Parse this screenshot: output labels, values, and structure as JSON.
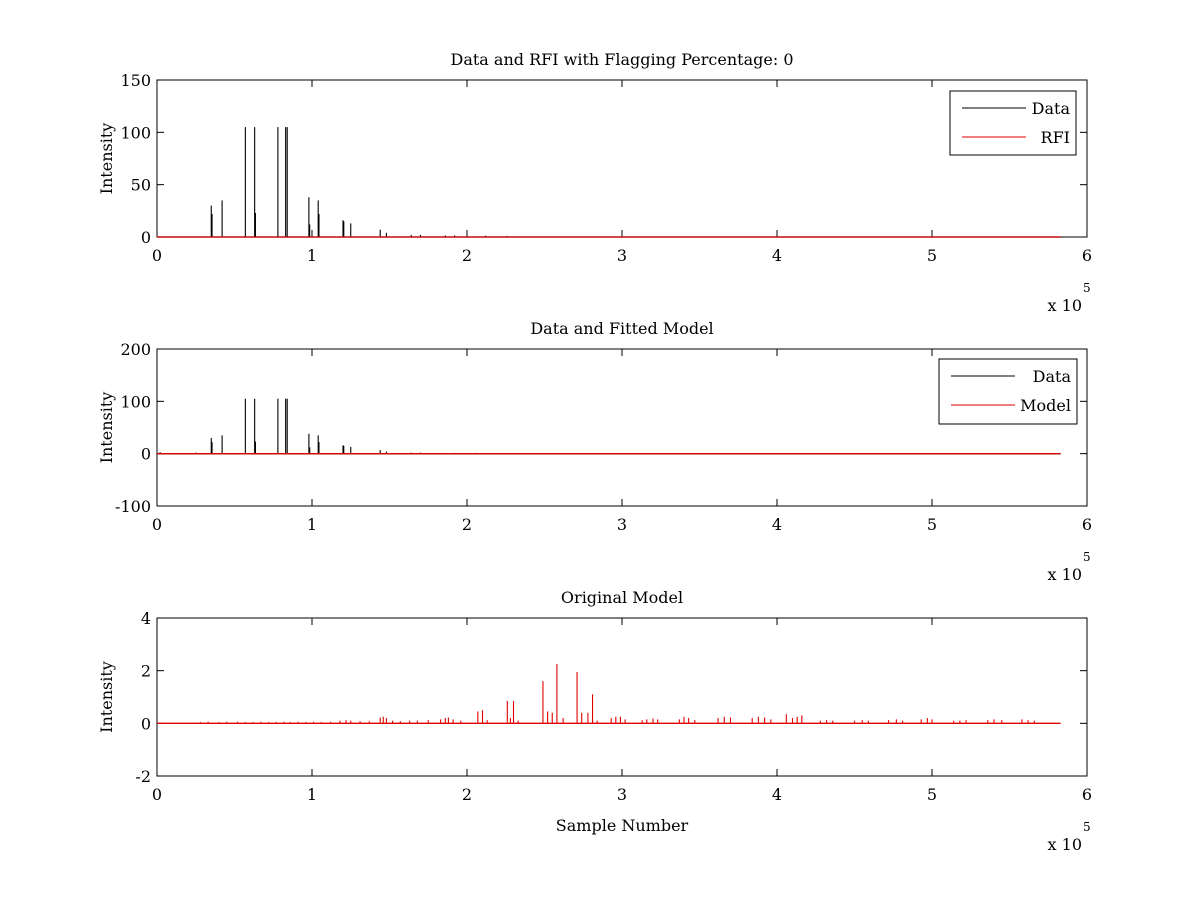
{
  "colors": {
    "data": "#000000",
    "red": "#e00000",
    "axes": "#000000",
    "background": "#ffffff"
  },
  "chart_data": [
    {
      "type": "line",
      "title": "Data and RFI with Flagging Percentage: 0",
      "xlabel": "",
      "ylabel": "Intensity",
      "xlim": [
        0,
        600000
      ],
      "ylim": [
        0,
        150
      ],
      "x_ticks": [
        0,
        1,
        2,
        3,
        4,
        5,
        6
      ],
      "y_ticks": [
        0,
        50,
        100,
        150
      ],
      "x_multiplier_label": "x 10",
      "x_multiplier_exponent": "5",
      "legend": {
        "placement": "top-right",
        "entries": [
          "Data",
          "RFI"
        ]
      },
      "baseline": 0,
      "x_end": 583000,
      "series": [
        {
          "name": "Data",
          "color": "#000000",
          "spikes": [
            [
              35000,
              30
            ],
            [
              35500,
              22
            ],
            [
              42000,
              35
            ],
            [
              57000,
              105
            ],
            [
              63000,
              105
            ],
            [
              63500,
              23
            ],
            [
              78000,
              105
            ],
            [
              83000,
              105
            ],
            [
              84000,
              105
            ],
            [
              98000,
              38
            ],
            [
              98500,
              12
            ],
            [
              104000,
              35
            ],
            [
              104500,
              22
            ],
            [
              120000,
              16
            ],
            [
              120500,
              15
            ],
            [
              125000,
              13
            ],
            [
              144000,
              7
            ],
            [
              148000,
              4
            ],
            [
              164000,
              2
            ],
            [
              170000,
              2
            ],
            [
              186000,
              1.5
            ],
            [
              192000,
              1.5
            ],
            [
              212000,
              1.2
            ],
            [
              226000,
              1
            ]
          ]
        },
        {
          "name": "RFI",
          "color": "#e00000",
          "spikes": []
        }
      ]
    },
    {
      "type": "line",
      "title": "Data and Fitted Model",
      "xlabel": "",
      "ylabel": "Intensity",
      "xlim": [
        0,
        600000
      ],
      "ylim": [
        -100,
        200
      ],
      "x_ticks": [
        0,
        1,
        2,
        3,
        4,
        5,
        6
      ],
      "y_ticks": [
        -100,
        0,
        100,
        200
      ],
      "x_multiplier_label": "x 10",
      "x_multiplier_exponent": "5",
      "legend": {
        "placement": "top-right",
        "entries": [
          "Data",
          "Model"
        ]
      },
      "baseline": 0,
      "x_end": 583000,
      "series": [
        {
          "name": "Data",
          "color": "#000000",
          "spikes": [
            [
              2000,
              3
            ],
            [
              25000,
              2
            ],
            [
              35000,
              30
            ],
            [
              35500,
              22
            ],
            [
              42000,
              35
            ],
            [
              57000,
              105
            ],
            [
              63000,
              105
            ],
            [
              63500,
              23
            ],
            [
              78000,
              105
            ],
            [
              83000,
              105
            ],
            [
              84000,
              105
            ],
            [
              98000,
              38
            ],
            [
              98500,
              12
            ],
            [
              104000,
              35
            ],
            [
              104500,
              22
            ],
            [
              120000,
              16
            ],
            [
              120500,
              15
            ],
            [
              125000,
              13
            ],
            [
              144000,
              7
            ],
            [
              148000,
              4
            ],
            [
              164000,
              2
            ],
            [
              170000,
              2
            ],
            [
              186000,
              1.5
            ],
            [
              192000,
              1.5
            ],
            [
              206000,
              1.5
            ],
            [
              212000,
              1.2
            ],
            [
              226000,
              1
            ],
            [
              248000,
              1
            ],
            [
              252000,
              1
            ],
            [
              275000,
              1
            ],
            [
              280000,
              1
            ],
            [
              295000,
              1
            ],
            [
              300000,
              1
            ],
            [
              318000,
              1
            ],
            [
              322000,
              1
            ],
            [
              362000,
              1
            ],
            [
              405000,
              1
            ],
            [
              582000,
              1
            ]
          ]
        },
        {
          "name": "Model",
          "color": "#e00000",
          "spikes": [
            [
              2000,
              1
            ],
            [
              25000,
              0.5
            ],
            [
              250000,
              0.5
            ],
            [
              280000,
              0.5
            ],
            [
              582000,
              0.5
            ]
          ]
        }
      ]
    },
    {
      "type": "line",
      "title": "Original Model",
      "xlabel": "Sample Number",
      "ylabel": "Intensity",
      "xlim": [
        0,
        600000
      ],
      "ylim": [
        -2,
        4
      ],
      "x_ticks": [
        0,
        1,
        2,
        3,
        4,
        5,
        6
      ],
      "y_ticks": [
        -2,
        0,
        2,
        4
      ],
      "x_multiplier_label": "x 10",
      "x_multiplier_exponent": "5",
      "legend": null,
      "baseline": 0,
      "x_end": 583000,
      "series": [
        {
          "name": "",
          "color": "#e00000",
          "spikes": [
            [
              28000,
              0.05
            ],
            [
              33000,
              0.06
            ],
            [
              40000,
              0.05
            ],
            [
              45000,
              0.06
            ],
            [
              52000,
              0.06
            ],
            [
              57000,
              0.05
            ],
            [
              62000,
              0.05
            ],
            [
              67000,
              0.06
            ],
            [
              72000,
              0.05
            ],
            [
              77000,
              0.05
            ],
            [
              82000,
              0.06
            ],
            [
              86000,
              0.05
            ],
            [
              91000,
              0.06
            ],
            [
              96000,
              0.05
            ],
            [
              101000,
              0.06
            ],
            [
              106000,
              0.05
            ],
            [
              112000,
              0.06
            ],
            [
              118000,
              0.1
            ],
            [
              122000,
              0.12
            ],
            [
              125000,
              0.1
            ],
            [
              131000,
              0.08
            ],
            [
              137000,
              0.08
            ],
            [
              144000,
              0.22
            ],
            [
              146000,
              0.25
            ],
            [
              148000,
              0.2
            ],
            [
              152000,
              0.1
            ],
            [
              157000,
              0.08
            ],
            [
              163000,
              0.1
            ],
            [
              168000,
              0.1
            ],
            [
              175000,
              0.12
            ],
            [
              183000,
              0.15
            ],
            [
              186000,
              0.2
            ],
            [
              188000,
              0.22
            ],
            [
              191000,
              0.15
            ],
            [
              196000,
              0.1
            ],
            [
              207000,
              0.45
            ],
            [
              210000,
              0.5
            ],
            [
              213000,
              0.12
            ],
            [
              226000,
              0.85
            ],
            [
              228000,
              0.2
            ],
            [
              230000,
              0.85
            ],
            [
              233000,
              0.1
            ],
            [
              249000,
              1.6
            ],
            [
              252000,
              0.45
            ],
            [
              255000,
              0.4
            ],
            [
              258000,
              2.25
            ],
            [
              262000,
              0.2
            ],
            [
              271000,
              1.95
            ],
            [
              274000,
              0.4
            ],
            [
              278000,
              0.4
            ],
            [
              281000,
              1.1
            ],
            [
              284000,
              0.1
            ],
            [
              293000,
              0.2
            ],
            [
              296000,
              0.25
            ],
            [
              299000,
              0.25
            ],
            [
              302000,
              0.15
            ],
            [
              313000,
              0.12
            ],
            [
              316000,
              0.15
            ],
            [
              320000,
              0.18
            ],
            [
              323000,
              0.15
            ],
            [
              337000,
              0.15
            ],
            [
              340000,
              0.25
            ],
            [
              343000,
              0.2
            ],
            [
              347000,
              0.12
            ],
            [
              362000,
              0.2
            ],
            [
              366000,
              0.25
            ],
            [
              370000,
              0.22
            ],
            [
              384000,
              0.2
            ],
            [
              388000,
              0.25
            ],
            [
              392000,
              0.22
            ],
            [
              396000,
              0.15
            ],
            [
              406000,
              0.35
            ],
            [
              410000,
              0.2
            ],
            [
              413000,
              0.25
            ],
            [
              416000,
              0.3
            ],
            [
              428000,
              0.1
            ],
            [
              432000,
              0.12
            ],
            [
              436000,
              0.1
            ],
            [
              450000,
              0.1
            ],
            [
              455000,
              0.12
            ],
            [
              459000,
              0.1
            ],
            [
              472000,
              0.12
            ],
            [
              477000,
              0.15
            ],
            [
              481000,
              0.1
            ],
            [
              493000,
              0.15
            ],
            [
              497000,
              0.2
            ],
            [
              500000,
              0.15
            ],
            [
              514000,
              0.1
            ],
            [
              518000,
              0.1
            ],
            [
              522000,
              0.12
            ],
            [
              536000,
              0.12
            ],
            [
              540000,
              0.15
            ],
            [
              545000,
              0.12
            ],
            [
              558000,
              0.15
            ],
            [
              562000,
              0.12
            ],
            [
              566000,
              0.1
            ]
          ]
        }
      ]
    }
  ]
}
